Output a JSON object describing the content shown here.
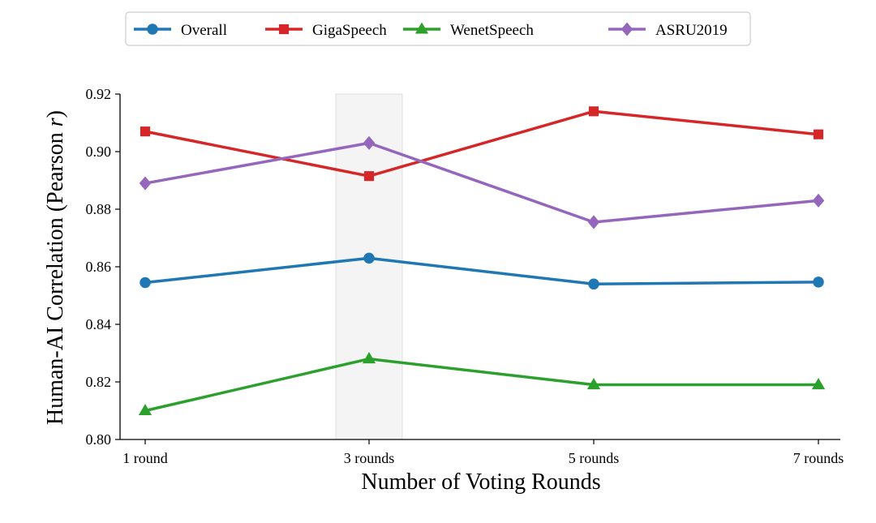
{
  "chart_data": {
    "type": "line",
    "categories": [
      "1 round",
      "3 rounds",
      "5 rounds",
      "7 rounds"
    ],
    "xlabel": "Number of Voting Rounds",
    "ylabel": "Human-AI Correlation (Pearson ",
    "ylabel_italic": "r",
    "ylabel_suffix": ")",
    "ylim": [
      0.8,
      0.92
    ],
    "yticks": [
      "0.80",
      "0.82",
      "0.84",
      "0.86",
      "0.88",
      "0.90",
      "0.92"
    ],
    "highlight_category": "3 rounds",
    "legend_position": "top-center",
    "grid": false,
    "series": [
      {
        "name": "Overall",
        "color": "#1f77b4",
        "marker": "circle",
        "values": [
          0.8545,
          0.863,
          0.854,
          0.8547
        ]
      },
      {
        "name": "GigaSpeech",
        "color": "#d62728",
        "marker": "square",
        "values": [
          0.907,
          0.8915,
          0.914,
          0.906
        ]
      },
      {
        "name": "WenetSpeech",
        "color": "#2ca02c",
        "marker": "triangle",
        "values": [
          0.81,
          0.828,
          0.819,
          0.819
        ]
      },
      {
        "name": "ASRU2019",
        "color": "#9467bd",
        "marker": "diamond",
        "values": [
          0.889,
          0.903,
          0.8755,
          0.883
        ]
      }
    ]
  }
}
